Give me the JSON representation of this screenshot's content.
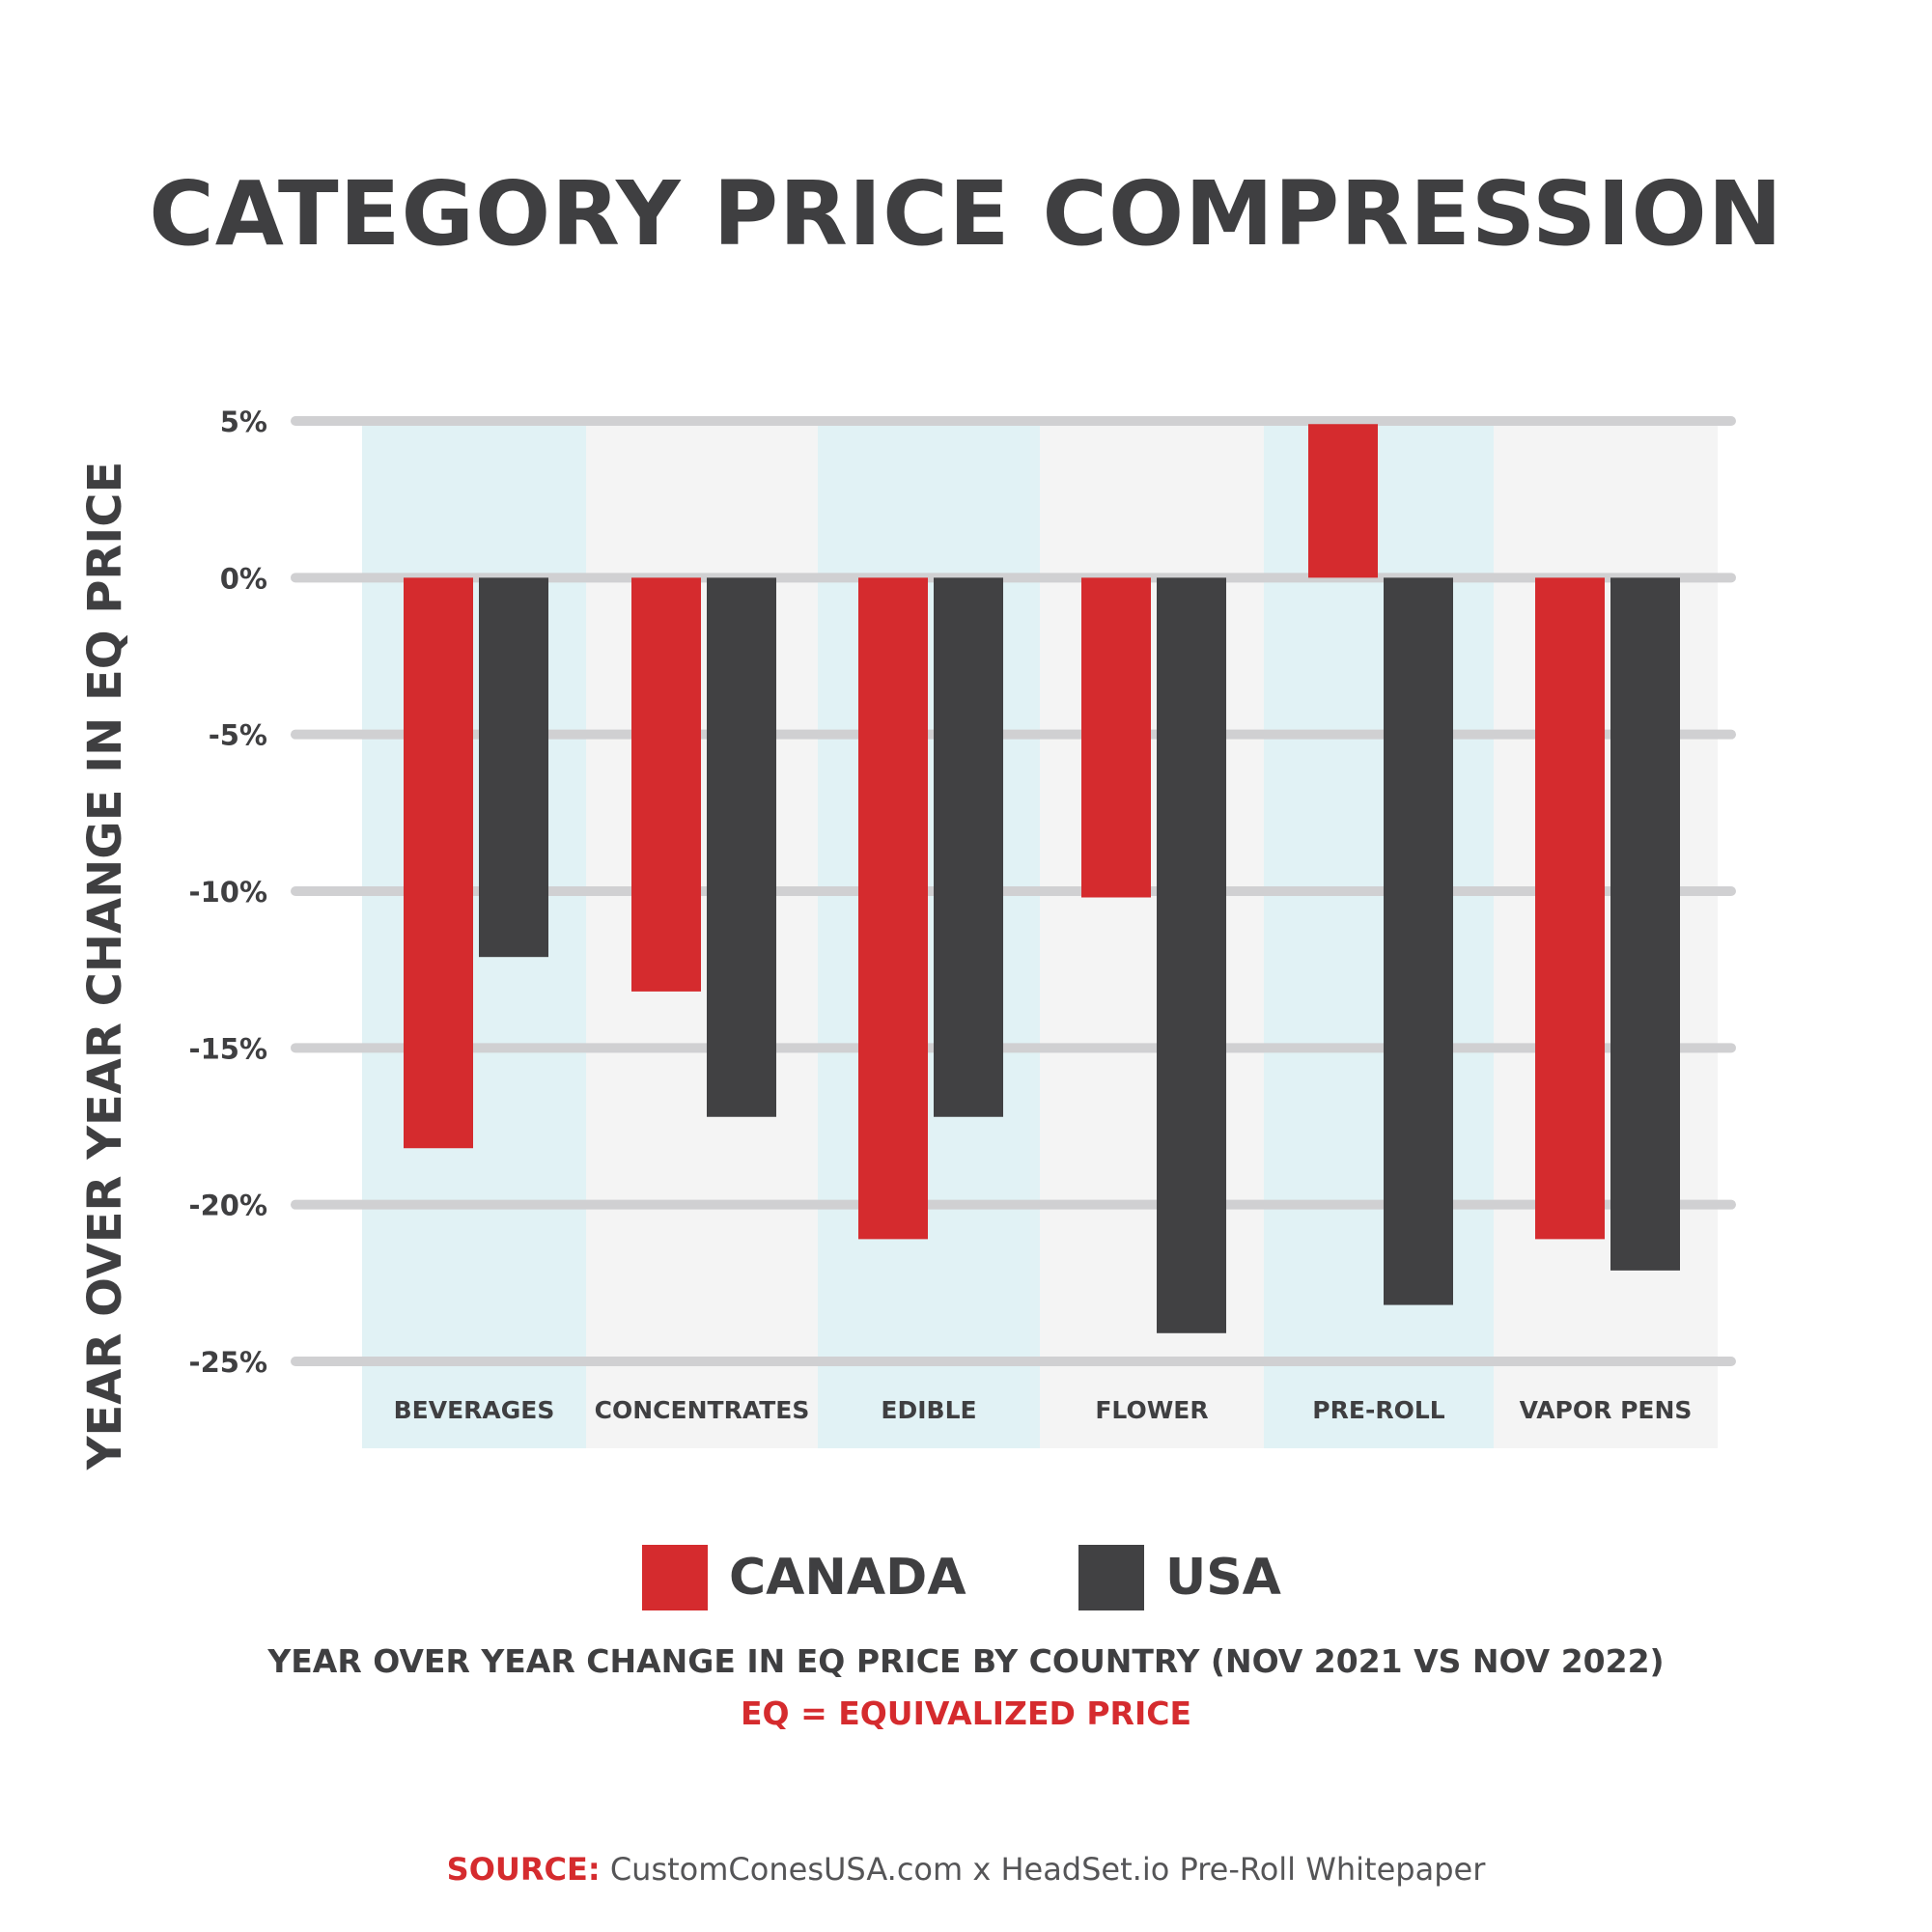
{
  "title": "CATEGORY PRICE COMPRESSION",
  "chart_data": {
    "type": "bar",
    "title": "CATEGORY PRICE COMPRESSION",
    "ylabel": "YEAR OVER YEAR CHANGE IN EQ PRICE",
    "xlabel": "",
    "categories": [
      "BEVERAGES",
      "CONCENTRATES",
      "EDIBLE",
      "FLOWER",
      "PRE-ROLL",
      "VAPOR PENS"
    ],
    "series": [
      {
        "name": "CANADA",
        "color": "#d52b2e",
        "values": [
          -18.2,
          -13.2,
          -21.1,
          -10.2,
          4.9,
          -21.1
        ]
      },
      {
        "name": "USA",
        "color": "#414143",
        "values": [
          -12.1,
          -17.2,
          -17.2,
          -24.1,
          -23.2,
          -22.1
        ]
      }
    ],
    "ylim": [
      -25,
      5
    ],
    "yticks": [
      5,
      0,
      -5,
      -10,
      -15,
      -20,
      -25
    ],
    "ytick_labels": [
      "5%",
      "0%",
      "-5%",
      "-10%",
      "-15%",
      "-20%",
      "-25%"
    ],
    "grid": true,
    "band_colors": [
      "#e1f2f5",
      "#f4f4f4"
    ],
    "legend_position": "bottom"
  },
  "legend": [
    {
      "label": "CANADA",
      "color": "#d52b2e"
    },
    {
      "label": "USA",
      "color": "#414143"
    }
  ],
  "subtitle": "YEAR OVER YEAR CHANGE IN EQ PRICE BY COUNTRY (NOV 2021 VS NOV 2022)",
  "eq_note": "EQ = EQUIVALIZED PRICE",
  "source": {
    "label": "SOURCE:",
    "text": " CustomConesUSA.com x HeadSet.io Pre-Roll Whitepaper"
  }
}
